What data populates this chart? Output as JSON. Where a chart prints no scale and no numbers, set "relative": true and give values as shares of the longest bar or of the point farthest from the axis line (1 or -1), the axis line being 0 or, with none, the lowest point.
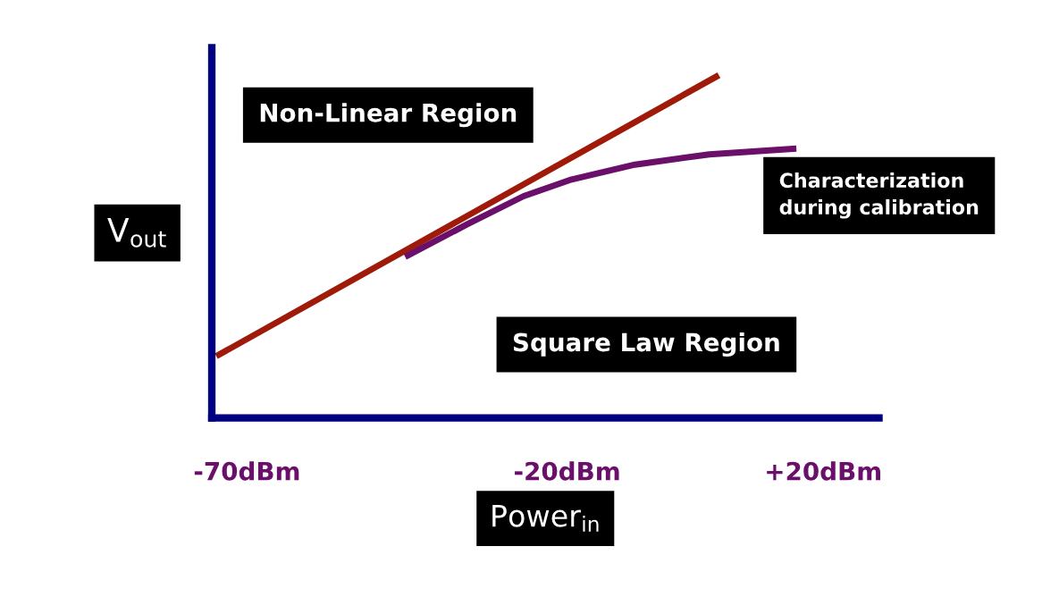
{
  "chart_data": {
    "type": "line",
    "relative": true,
    "xlabel": "Power$_{in}$",
    "ylabel": "V$_{out}$",
    "xlim": [
      -75.5,
      28.7
    ],
    "xticks": [
      {
        "value": -70,
        "label": "-70dBm"
      },
      {
        "value": -20,
        "label": "-20dBm"
      },
      {
        "value": 20,
        "label": "+20dBm"
      }
    ],
    "series": [
      {
        "color": "#a01a0a",
        "x": [
          -74.8,
          3.7
        ],
        "values": [
          0.18,
          1
        ]
      },
      {
        "color": "#6a0f6a",
        "x": [
          -45.3,
          -35.6,
          -26.8,
          -19.6,
          -9.4,
          2.2,
          15.8
        ],
        "values": [
          0.47,
          0.565,
          0.647,
          0.694,
          0.739,
          0.769,
          0.786
        ]
      }
    ],
    "annotations": [
      "Non-Linear Region",
      "Characterization\nduring calibration",
      "Square Law Region"
    ],
    "grid": false,
    "legend": false,
    "marker": "none",
    "line_style": "solid"
  }
}
